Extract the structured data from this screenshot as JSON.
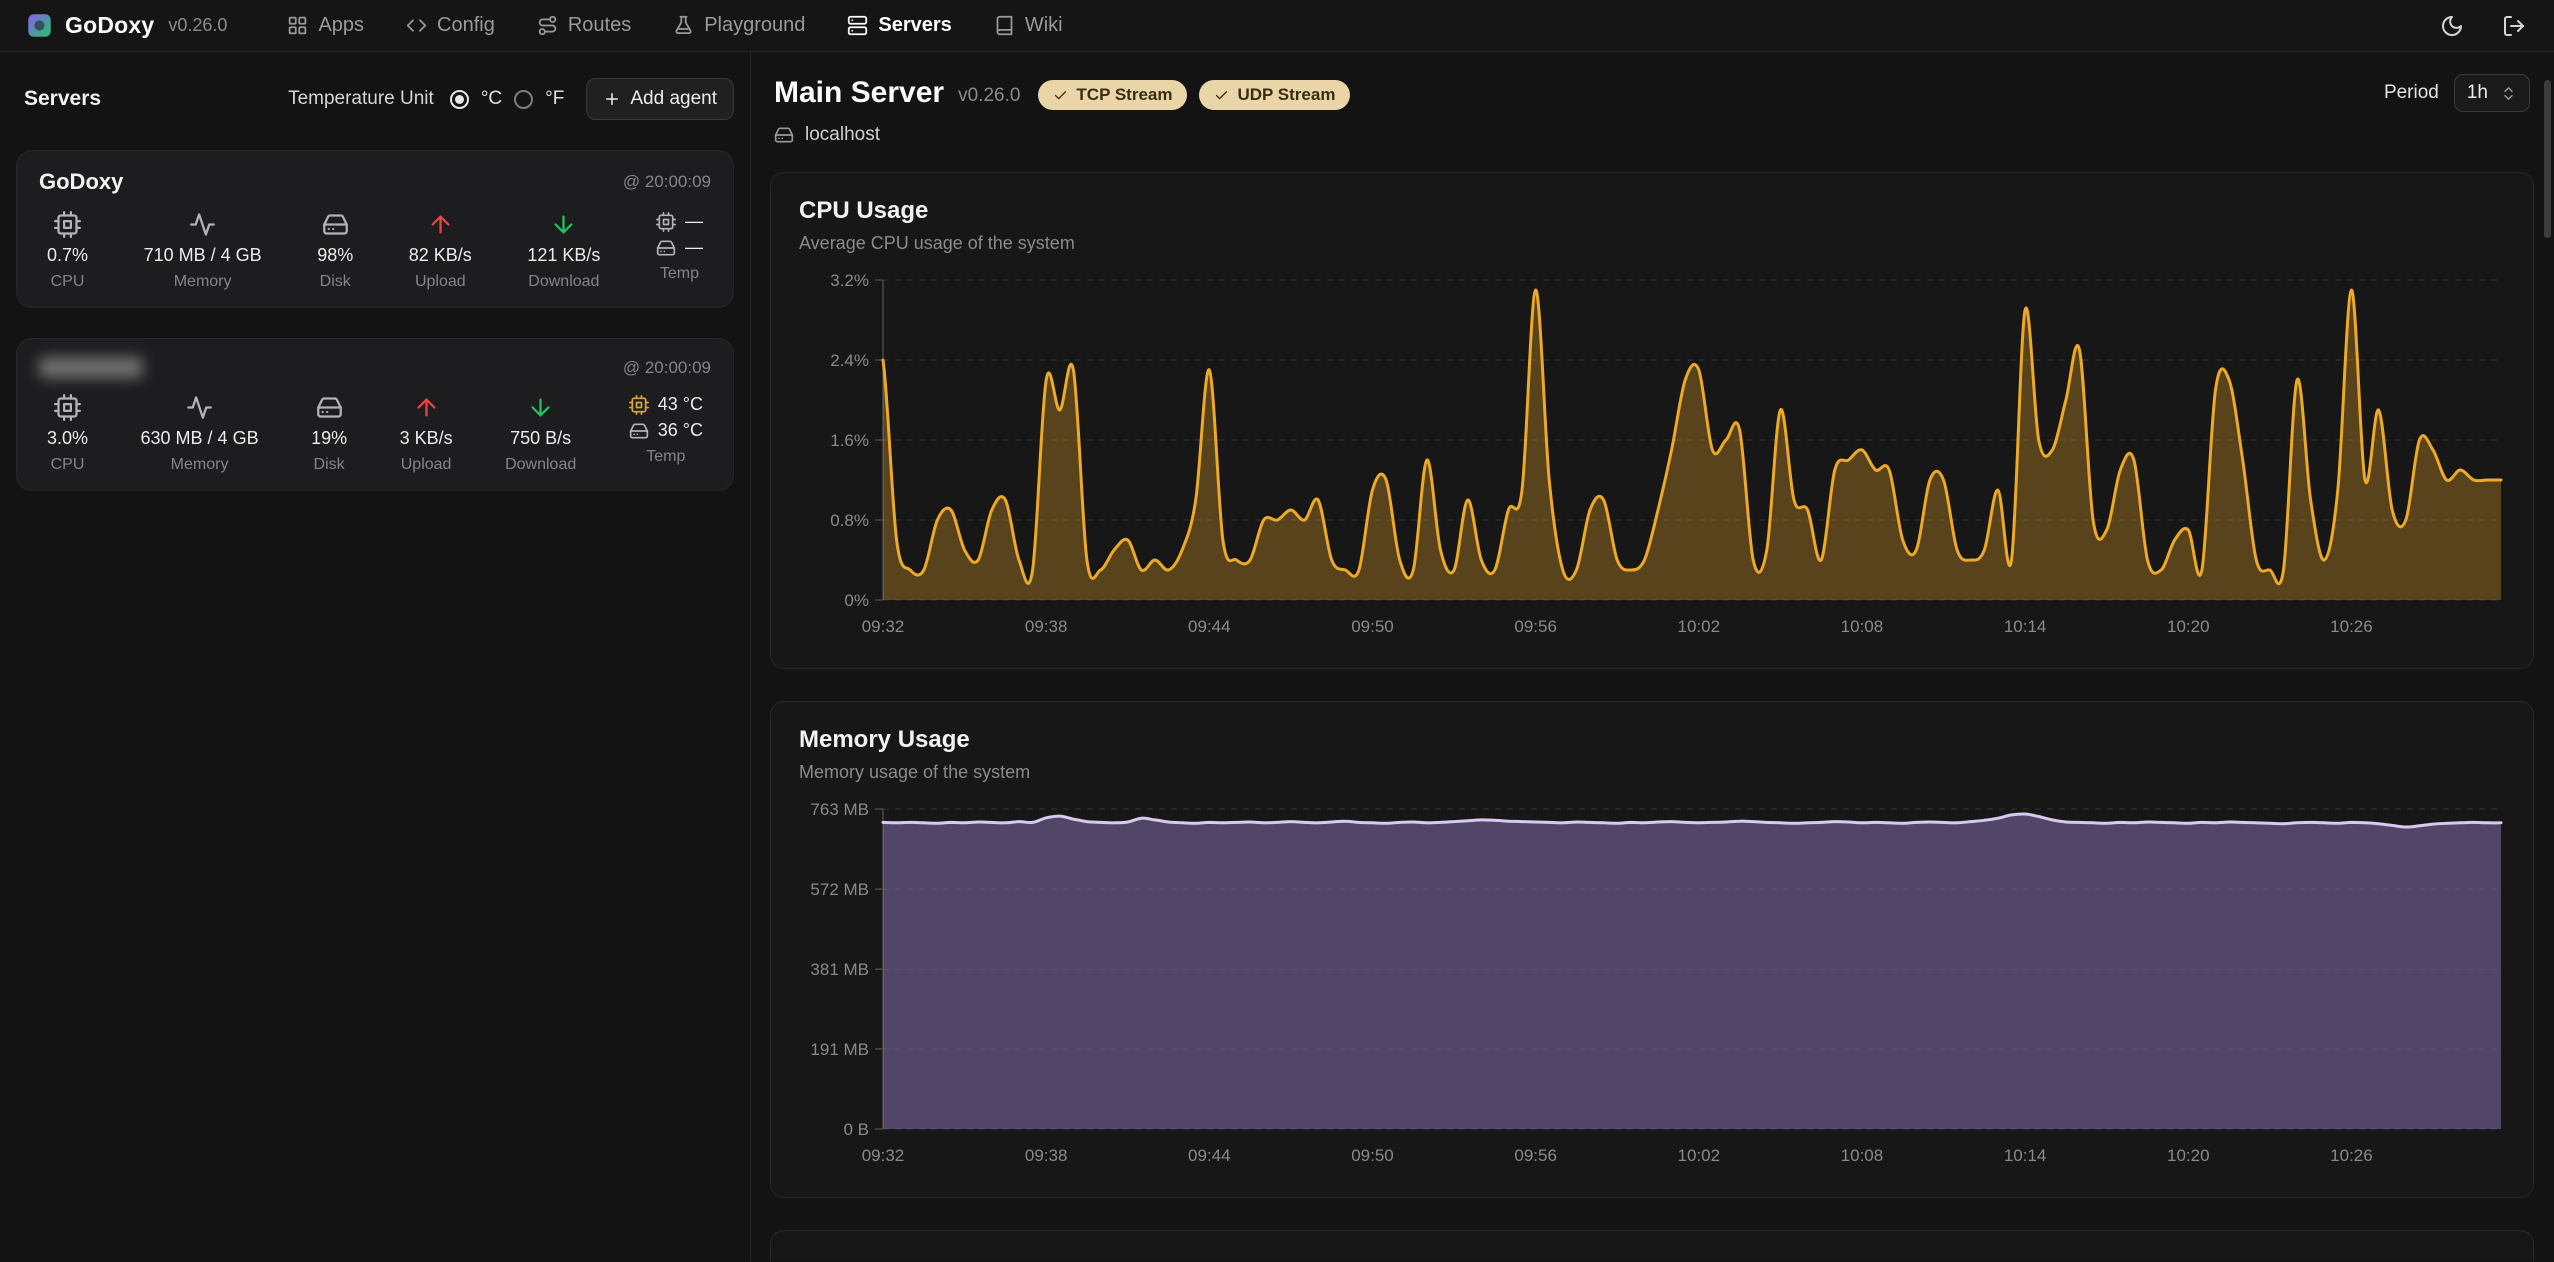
{
  "app": {
    "brand": "GoDoxy",
    "version": "v0.26.0"
  },
  "navbar": {
    "items": [
      {
        "label": "Apps",
        "icon": "grid-icon"
      },
      {
        "label": "Config",
        "icon": "code-icon"
      },
      {
        "label": "Routes",
        "icon": "route-icon"
      },
      {
        "label": "Playground",
        "icon": "flask-icon"
      },
      {
        "label": "Servers",
        "icon": "server-icon",
        "active": true
      },
      {
        "label": "Wiki",
        "icon": "book-icon"
      }
    ],
    "right_icons": [
      "moon-icon",
      "logout-icon"
    ]
  },
  "sidebar": {
    "title": "Servers",
    "temperature_unit_label": "Temperature Unit",
    "celsius_label": "°C",
    "fahrenheit_label": "°F",
    "celsius_selected": true,
    "add_agent_label": "Add agent",
    "servers": [
      {
        "name": "GoDoxy",
        "name_redacted": false,
        "timestamp": "@ 20:00:09",
        "cpu": {
          "value": "0.7%",
          "label": "CPU"
        },
        "memory": {
          "value": "710 MB / 4 GB",
          "label": "Memory"
        },
        "disk": {
          "value": "98%",
          "label": "Disk"
        },
        "upload": {
          "value": "82 KB/s",
          "label": "Upload"
        },
        "download": {
          "value": "121 KB/s",
          "label": "Download"
        },
        "temp": {
          "cpu_temp": "—",
          "disk_temp": "—",
          "label": "Temp"
        }
      },
      {
        "name": "",
        "name_redacted": true,
        "timestamp": "@ 20:00:09",
        "cpu": {
          "value": "3.0%",
          "label": "CPU"
        },
        "memory": {
          "value": "630 MB / 4 GB",
          "label": "Memory"
        },
        "disk": {
          "value": "19%",
          "label": "Disk"
        },
        "upload": {
          "value": "3 KB/s",
          "label": "Upload"
        },
        "download": {
          "value": "750 B/s",
          "label": "Download"
        },
        "temp": {
          "cpu_temp": "43 °C",
          "disk_temp": "36 °C",
          "label": "Temp"
        }
      }
    ]
  },
  "main": {
    "title": "Main Server",
    "version": "v0.26.0",
    "badges": [
      {
        "label": "TCP Stream",
        "icon": "check-icon"
      },
      {
        "label": "UDP Stream",
        "icon": "check-icon"
      }
    ],
    "host": "localhost",
    "period_label": "Period",
    "period_value": "1h"
  },
  "colors": {
    "cpu_line": "#eda928",
    "cpu_fill": "rgba(237,169,40,0.30)",
    "memory_line": "#d9c8f2",
    "memory_fill": "rgba(139,118,184,0.50)",
    "badge_bg": "#e9d5a8",
    "upload_arrow": "#ef4444",
    "download_arrow": "#22c55e"
  },
  "chart_data": [
    {
      "id": "cpu",
      "type": "area",
      "title": "CPU Usage",
      "subtitle": "Average CPU usage of the system",
      "xlabel": "",
      "ylabel": "",
      "ylim": [
        0,
        3.2
      ],
      "ymax": 3.2,
      "grid": "dashed-horizontal",
      "legend": "none",
      "ylabels": [
        "0%",
        "0.8%",
        "1.6%",
        "2.4%",
        "3.2%"
      ],
      "ytick_values": [
        0,
        0.8,
        1.6,
        2.4,
        3.2
      ],
      "x_ticks": [
        "09:32",
        "09:38",
        "09:44",
        "09:50",
        "09:56",
        "10:02",
        "10:08",
        "10:14",
        "10:20",
        "10:26"
      ],
      "x_tick_minutes": [
        0,
        6,
        12,
        18,
        24,
        30,
        36,
        42,
        48,
        54
      ],
      "total_minutes": 59.5,
      "line_color": "#eda928",
      "fill_color": "rgba(237,169,40,0.30)",
      "values": [
        2.4,
        0.6,
        0.3,
        0.3,
        0.8,
        0.9,
        0.5,
        0.4,
        0.9,
        1.0,
        0.4,
        0.3,
        2.2,
        1.9,
        2.3,
        0.4,
        0.3,
        0.5,
        0.6,
        0.3,
        0.4,
        0.3,
        0.5,
        1.0,
        2.3,
        0.6,
        0.4,
        0.4,
        0.8,
        0.8,
        0.9,
        0.8,
        1.0,
        0.4,
        0.3,
        0.3,
        1.1,
        1.2,
        0.4,
        0.3,
        1.4,
        0.5,
        0.3,
        1.0,
        0.4,
        0.3,
        0.9,
        1.1,
        3.1,
        1.2,
        0.3,
        0.3,
        0.9,
        1.0,
        0.4,
        0.3,
        0.4,
        0.9,
        1.5,
        2.2,
        2.3,
        1.5,
        1.6,
        1.7,
        0.4,
        0.5,
        1.9,
        1.0,
        0.9,
        0.4,
        1.3,
        1.4,
        1.5,
        1.3,
        1.3,
        0.6,
        0.5,
        1.2,
        1.2,
        0.5,
        0.4,
        0.5,
        1.1,
        0.4,
        2.9,
        1.6,
        1.5,
        2.0,
        2.5,
        0.8,
        0.7,
        1.3,
        1.4,
        0.4,
        0.3,
        0.6,
        0.7,
        0.3,
        2.1,
        2.2,
        1.4,
        0.4,
        0.3,
        0.3,
        2.2,
        1.0,
        0.4,
        1.1,
        3.1,
        1.2,
        1.9,
        0.9,
        0.8,
        1.6,
        1.5,
        1.2,
        1.3,
        1.2,
        1.2,
        1.2
      ]
    },
    {
      "id": "memory",
      "type": "area",
      "title": "Memory Usage",
      "subtitle": "Memory usage of the system",
      "xlabel": "",
      "ylabel": "",
      "ylim": [
        0,
        763
      ],
      "ymax": 763,
      "unit": "MB",
      "grid": "dashed-horizontal",
      "legend": "none",
      "ylabels": [
        "0 B",
        "191 MB",
        "381 MB",
        "572 MB",
        "763 MB"
      ],
      "ytick_values": [
        0,
        191,
        381,
        572,
        763
      ],
      "x_ticks": [
        "09:32",
        "09:38",
        "09:44",
        "09:50",
        "09:56",
        "10:02",
        "10:08",
        "10:14",
        "10:20",
        "10:26"
      ],
      "x_tick_minutes": [
        0,
        6,
        12,
        18,
        24,
        30,
        36,
        42,
        48,
        54
      ],
      "total_minutes": 59.5,
      "line_color": "#d9c8f2",
      "fill_color": "rgba(139,118,184,0.50)",
      "values": [
        731,
        730,
        731,
        730,
        729,
        731,
        730,
        732,
        731,
        730,
        733,
        731,
        742,
        746,
        739,
        733,
        731,
        730,
        732,
        741,
        737,
        732,
        730,
        729,
        731,
        730,
        731,
        732,
        730,
        731,
        733,
        731,
        730,
        732,
        734,
        731,
        730,
        729,
        731,
        732,
        730,
        731,
        733,
        735,
        737,
        736,
        734,
        733,
        732,
        731,
        730,
        732,
        731,
        730,
        729,
        731,
        730,
        732,
        733,
        731,
        730,
        731,
        732,
        734,
        733,
        731,
        730,
        729,
        730,
        731,
        733,
        732,
        730,
        731,
        730,
        729,
        731,
        732,
        731,
        730,
        733,
        736,
        741,
        749,
        751,
        745,
        737,
        732,
        731,
        730,
        729,
        731,
        730,
        732,
        731,
        730,
        729,
        731,
        730,
        732,
        731,
        730,
        729,
        728,
        730,
        731,
        730,
        729,
        731,
        730,
        728,
        724,
        720,
        723,
        727,
        729,
        730,
        731,
        730,
        730
      ]
    }
  ]
}
